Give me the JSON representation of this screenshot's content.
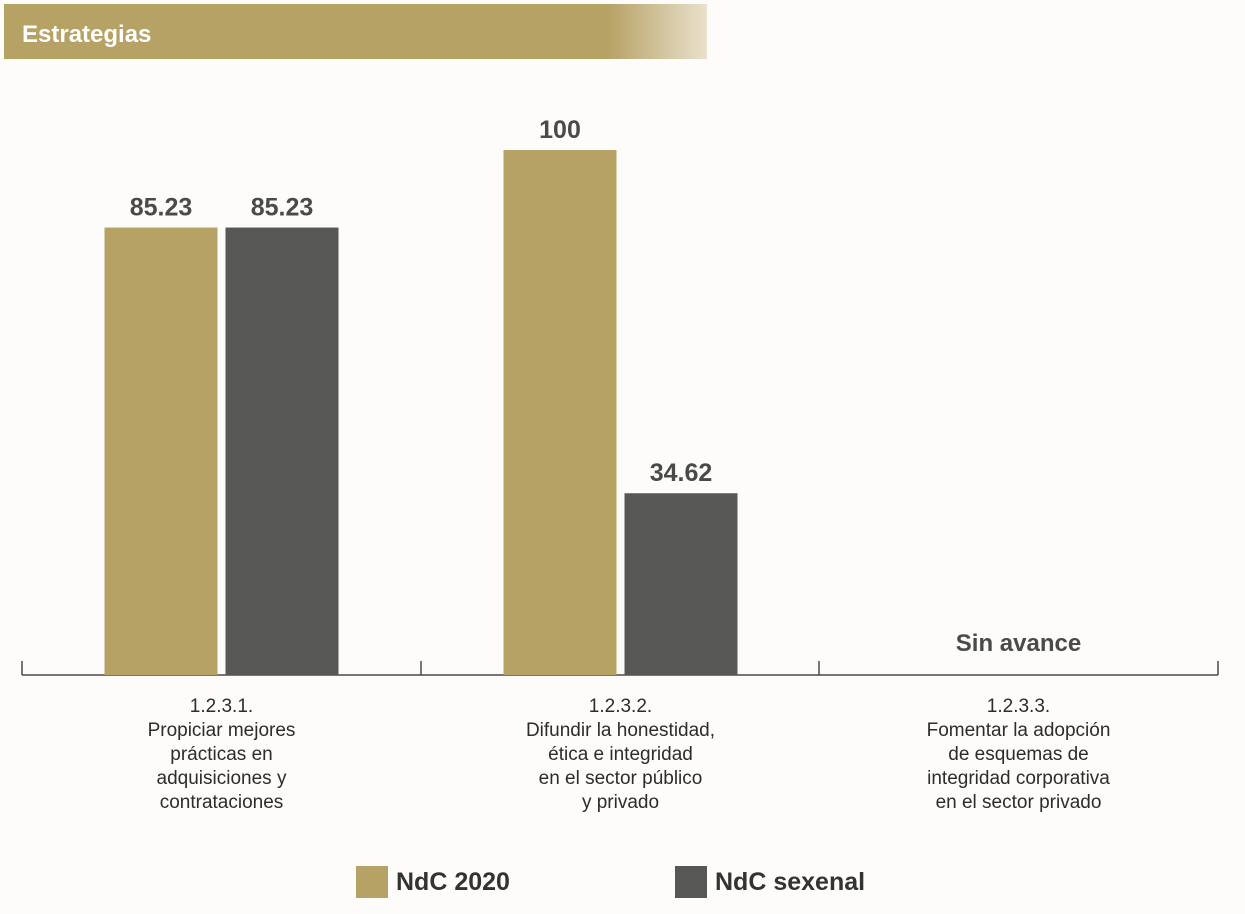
{
  "header": {
    "title": "Estrategias"
  },
  "colors": {
    "ndc2020": "#b7a266",
    "sexenal": "#575756",
    "axis": "#4a4a49"
  },
  "chart_data": {
    "type": "bar",
    "title": "",
    "xlabel": "",
    "ylabel": "",
    "ylim": [
      0,
      100
    ],
    "grid": false,
    "legend_position": "bottom-center",
    "categories": [
      {
        "lines": [
          "1.2.3.1.",
          "Propiciar mejores",
          "prácticas en",
          "adquisiciones y",
          "contrataciones"
        ]
      },
      {
        "lines": [
          "1.2.3.2.",
          "Difundir la honestidad,",
          "ética e integridad",
          "en el sector público",
          "y privado"
        ]
      },
      {
        "lines": [
          "1.2.3.3.",
          "Fomentar la adopción",
          "de esquemas de",
          "integridad corporativa",
          "en el sector privado"
        ]
      }
    ],
    "series": [
      {
        "name": "NdC 2020",
        "color": "#b7a266",
        "values": [
          85.23,
          100,
          null
        ],
        "labels": [
          "85.23",
          "100",
          ""
        ]
      },
      {
        "name": "NdC sexenal",
        "color": "#575756",
        "values": [
          85.23,
          34.62,
          null
        ],
        "labels": [
          "85.23",
          "34.62",
          ""
        ]
      }
    ],
    "annotations": [
      {
        "category_index": 2,
        "text": "Sin avance"
      }
    ]
  }
}
